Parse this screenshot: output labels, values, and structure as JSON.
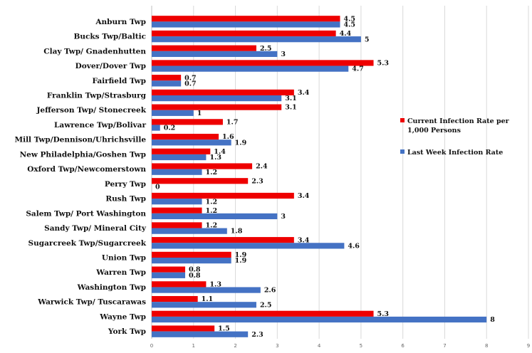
{
  "chart_data": {
    "type": "bar",
    "orientation": "horizontal",
    "categories": [
      "Anburn Twp",
      "Bucks Twp/Baltic",
      "Clay Twp/ Gnadenhutten",
      "Dover/Dover Twp",
      "Fairfield Twp",
      "Franklin Twp/Strasburg",
      "Jefferson Twp/ Stonecreek",
      "Lawrence Twp/Bolivar",
      "Mill Twp/Dennison/Uhrichsville",
      "New Philadelphia/Goshen Twp",
      "Oxford Twp/Newcomerstown",
      "Perry Twp",
      "Rush Twp",
      "Salem Twp/ Port Washington",
      "Sandy Twp/ Mineral City",
      "Sugarcreek Twp/Sugarcreek",
      "Union Twp",
      "Warren Twp",
      "Washington Twp",
      "Warwick Twp/ Tuscarawas",
      "Wayne Twp",
      "York Twp"
    ],
    "series": [
      {
        "name": "Current Infection Rate per 1,000 Persons",
        "color": "#ee0000",
        "values": [
          4.5,
          4.4,
          2.5,
          5.3,
          0.7,
          3.4,
          3.1,
          1.7,
          1.6,
          1.4,
          2.4,
          2.3,
          3.4,
          1.2,
          1.2,
          3.4,
          1.9,
          0.8,
          1.3,
          1.1,
          5.3,
          1.5
        ]
      },
      {
        "name": "Last Week Infection Rate",
        "color": "#4472c4",
        "values": [
          4.5,
          5,
          3,
          4.7,
          0.7,
          3.1,
          1,
          0.2,
          1.9,
          1.3,
          1.2,
          0,
          1.2,
          3,
          1.8,
          4.6,
          1.9,
          0.8,
          2.6,
          2.5,
          8,
          2.3
        ]
      }
    ],
    "xlim": [
      0,
      9
    ],
    "xticks": [
      "0",
      "1",
      "2",
      "3",
      "4",
      "5",
      "6",
      "7",
      "8",
      "9"
    ],
    "grid": "vertical",
    "legend_position": "right"
  }
}
